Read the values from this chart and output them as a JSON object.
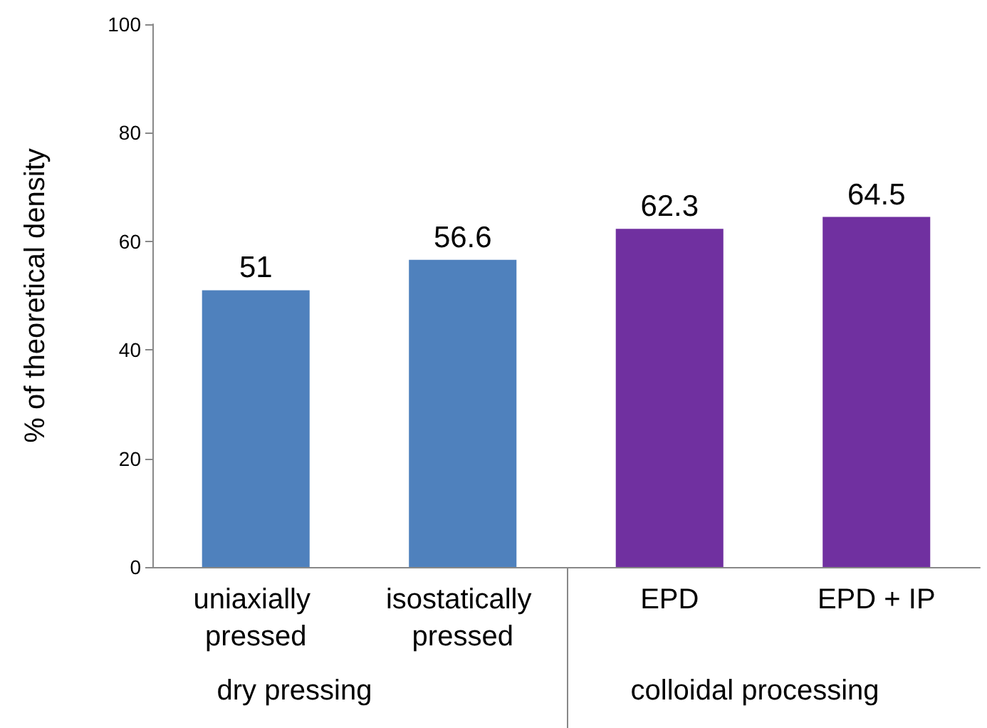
{
  "chart_data": {
    "type": "bar",
    "categories": [
      "uniaxially pressed",
      "isostatically pressed",
      "EPD",
      "EPD + IP"
    ],
    "values": [
      51,
      56.6,
      62.3,
      64.5
    ],
    "colors": [
      "#4f81bd",
      "#4f81bd",
      "#7030a0",
      "#7030a0"
    ],
    "ylabel": "% of theoretical density",
    "ylim": [
      0,
      100
    ],
    "yticks": [
      0,
      20,
      40,
      60,
      80,
      100
    ],
    "data_labels": true,
    "grid": false,
    "annotations": [
      "dry pressing",
      "colloidal processing"
    ]
  }
}
